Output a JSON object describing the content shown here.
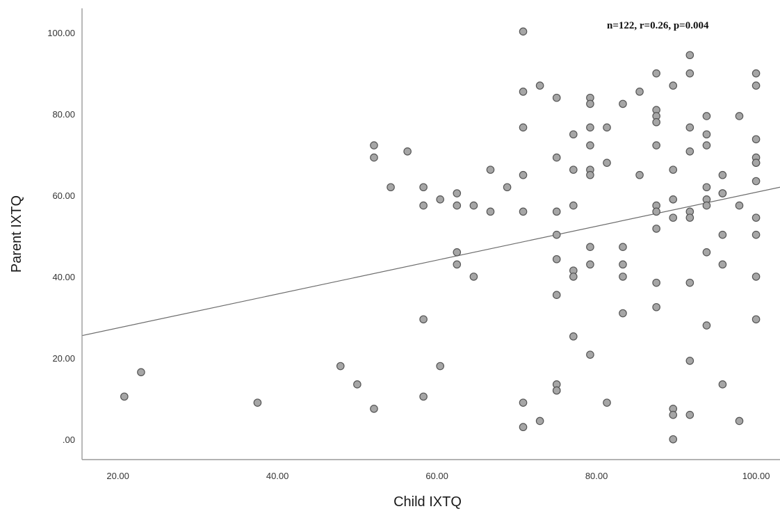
{
  "chart_data": {
    "type": "scatter",
    "title": "",
    "xlabel": "Child IXTQ",
    "ylabel": "Parent IXTQ",
    "annotation": "n=122, r=0.26, p=0.004",
    "xlim": [
      15.5,
      103
    ],
    "ylim": [
      -5,
      106
    ],
    "x_ticks": [
      20,
      40,
      60,
      80,
      100
    ],
    "x_tick_labels": [
      "20.00",
      "40.00",
      "60.00",
      "80.00",
      "100.00"
    ],
    "y_ticks": [
      0,
      20,
      40,
      60,
      80,
      100
    ],
    "y_tick_labels": [
      ".00",
      "20.00",
      "40.00",
      "60.00",
      "80.00",
      "100.00"
    ],
    "grid": false,
    "marker_color": "#a6a6a6",
    "fit_line": {
      "x": [
        15.5,
        103
      ],
      "y": [
        25.5,
        62.0
      ]
    },
    "points": [
      [
        20.8,
        10.5
      ],
      [
        22.9,
        16.5
      ],
      [
        37.5,
        9.0
      ],
      [
        47.9,
        18.0
      ],
      [
        50.0,
        13.5
      ],
      [
        52.1,
        72.3
      ],
      [
        52.1,
        69.3
      ],
      [
        52.1,
        7.5
      ],
      [
        54.2,
        62.0
      ],
      [
        56.3,
        70.8
      ],
      [
        58.3,
        62.0
      ],
      [
        58.3,
        57.5
      ],
      [
        58.3,
        29.5
      ],
      [
        58.3,
        10.5
      ],
      [
        60.4,
        59.0
      ],
      [
        60.4,
        18.0
      ],
      [
        62.5,
        60.5
      ],
      [
        62.5,
        57.5
      ],
      [
        62.5,
        46.0
      ],
      [
        62.5,
        43.0
      ],
      [
        64.6,
        57.5
      ],
      [
        64.6,
        40.0
      ],
      [
        66.7,
        66.3
      ],
      [
        66.7,
        56.0
      ],
      [
        68.8,
        62.0
      ],
      [
        70.8,
        100.3
      ],
      [
        70.8,
        85.5
      ],
      [
        70.8,
        76.7
      ],
      [
        70.8,
        65.0
      ],
      [
        70.8,
        56.0
      ],
      [
        70.8,
        9.0
      ],
      [
        70.8,
        3.0
      ],
      [
        72.9,
        87.0
      ],
      [
        72.9,
        4.5
      ],
      [
        75.0,
        84.0
      ],
      [
        75.0,
        69.3
      ],
      [
        75.0,
        56.0
      ],
      [
        75.0,
        50.3
      ],
      [
        75.0,
        44.3
      ],
      [
        75.0,
        35.5
      ],
      [
        75.0,
        13.5
      ],
      [
        75.0,
        12.0
      ],
      [
        75.0,
        12.0
      ],
      [
        77.1,
        75.0
      ],
      [
        77.1,
        66.3
      ],
      [
        77.1,
        57.5
      ],
      [
        77.1,
        41.5
      ],
      [
        77.1,
        40.0
      ],
      [
        77.1,
        25.3
      ],
      [
        79.2,
        84.0
      ],
      [
        79.2,
        82.5
      ],
      [
        79.2,
        76.7
      ],
      [
        79.2,
        72.3
      ],
      [
        79.2,
        66.3
      ],
      [
        79.2,
        65.0
      ],
      [
        79.2,
        47.3
      ],
      [
        79.2,
        43.0
      ],
      [
        79.2,
        20.8
      ],
      [
        81.3,
        76.7
      ],
      [
        81.3,
        68.0
      ],
      [
        81.3,
        9.0
      ],
      [
        83.3,
        82.5
      ],
      [
        83.3,
        47.3
      ],
      [
        83.3,
        43.0
      ],
      [
        83.3,
        40.0
      ],
      [
        83.3,
        31.0
      ],
      [
        85.4,
        85.5
      ],
      [
        85.4,
        65.0
      ],
      [
        87.5,
        90.0
      ],
      [
        87.5,
        81.0
      ],
      [
        87.5,
        79.5
      ],
      [
        87.5,
        78.0
      ],
      [
        87.5,
        72.3
      ],
      [
        87.5,
        57.5
      ],
      [
        87.5,
        56.0
      ],
      [
        87.5,
        51.8
      ],
      [
        87.5,
        38.5
      ],
      [
        87.5,
        32.5
      ],
      [
        89.6,
        87.0
      ],
      [
        89.6,
        66.3
      ],
      [
        89.6,
        59.0
      ],
      [
        89.6,
        54.5
      ],
      [
        89.6,
        7.5
      ],
      [
        89.6,
        6.0
      ],
      [
        89.6,
        0.0
      ],
      [
        91.7,
        94.5
      ],
      [
        91.7,
        90.0
      ],
      [
        91.7,
        76.7
      ],
      [
        91.7,
        70.8
      ],
      [
        91.7,
        56.0
      ],
      [
        91.7,
        54.5
      ],
      [
        91.7,
        38.5
      ],
      [
        91.7,
        19.3
      ],
      [
        91.7,
        6.0
      ],
      [
        93.8,
        79.5
      ],
      [
        93.8,
        75.0
      ],
      [
        93.8,
        72.3
      ],
      [
        93.8,
        62.0
      ],
      [
        93.8,
        59.0
      ],
      [
        93.8,
        57.5
      ],
      [
        93.8,
        46.0
      ],
      [
        93.8,
        28.0
      ],
      [
        95.8,
        65.0
      ],
      [
        95.8,
        60.5
      ],
      [
        95.8,
        60.5
      ],
      [
        95.8,
        50.3
      ],
      [
        95.8,
        43.0
      ],
      [
        95.8,
        13.5
      ],
      [
        97.9,
        79.5
      ],
      [
        97.9,
        57.5
      ],
      [
        97.9,
        4.5
      ],
      [
        100.0,
        90.0
      ],
      [
        100.0,
        87.0
      ],
      [
        100.0,
        73.8
      ],
      [
        100.0,
        69.3
      ],
      [
        100.0,
        68.0
      ],
      [
        100.0,
        63.5
      ],
      [
        100.0,
        54.5
      ],
      [
        100.0,
        50.3
      ],
      [
        100.0,
        40.0
      ],
      [
        100.0,
        29.5
      ],
      [
        100.0,
        68.0
      ]
    ]
  }
}
